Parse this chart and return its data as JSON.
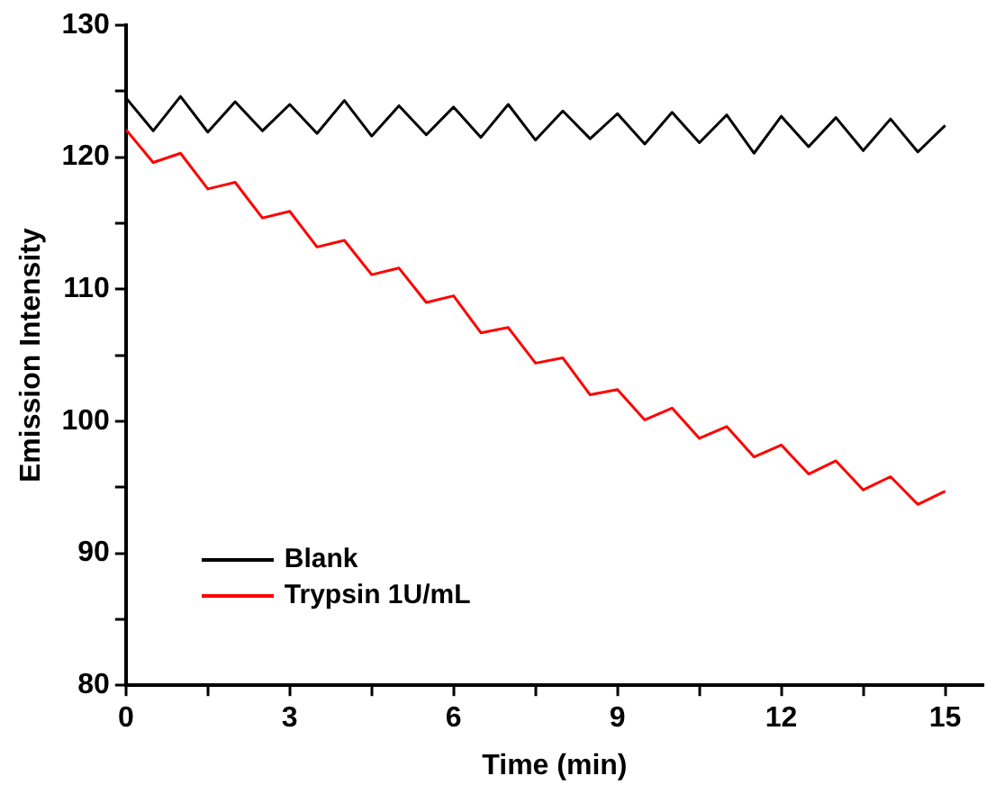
{
  "chart_data": {
    "type": "line",
    "xlabel": "Time (min)",
    "ylabel": "Emission Intensity",
    "x": [
      0,
      0.5,
      1,
      1.5,
      2,
      2.5,
      3,
      3.5,
      4,
      4.5,
      5,
      5.5,
      6,
      6.5,
      7,
      7.5,
      8,
      8.5,
      9,
      9.5,
      10,
      10.5,
      11,
      11.5,
      12,
      12.5,
      13,
      13.5,
      14,
      14.5,
      15
    ],
    "series": [
      {
        "name": "Blank",
        "color": "#000000",
        "values": [
          124.5,
          122.0,
          124.6,
          121.9,
          124.2,
          122.0,
          124.0,
          121.8,
          124.3,
          121.6,
          123.9,
          121.7,
          123.8,
          121.5,
          124.0,
          121.3,
          123.5,
          121.4,
          123.3,
          121.0,
          123.4,
          121.1,
          123.2,
          120.3,
          123.1,
          120.8,
          123.0,
          120.5,
          122.9,
          120.4,
          122.4
        ]
      },
      {
        "name": "Trypsin 1U/mL",
        "color": "#ff0000",
        "values": [
          122.1,
          119.6,
          120.3,
          117.6,
          118.1,
          115.4,
          115.9,
          113.2,
          113.7,
          111.1,
          111.6,
          109.0,
          109.5,
          106.7,
          107.1,
          104.4,
          104.8,
          102.0,
          102.4,
          100.1,
          101.0,
          98.7,
          99.6,
          97.3,
          98.2,
          96.0,
          97.0,
          94.8,
          95.8,
          93.7,
          94.7
        ]
      }
    ],
    "xlim": [
      0,
      15.7
    ],
    "xticks": [
      0,
      {
        "value": 1.5,
        "label": null
      },
      3,
      {
        "value": 4.5,
        "label": null
      },
      6,
      {
        "value": 7.5,
        "label": null
      },
      9,
      {
        "value": 10.5,
        "label": null
      },
      12,
      {
        "value": 13.5,
        "label": null
      },
      15
    ],
    "ylim": [
      80,
      130
    ],
    "yticks": [
      80,
      {
        "value": 85,
        "label": null
      },
      90,
      {
        "value": 95,
        "label": null
      },
      100,
      {
        "value": 105,
        "label": null
      },
      110,
      {
        "value": 115,
        "label": null
      },
      120,
      {
        "value": 125,
        "label": null
      },
      130
    ],
    "grid": false,
    "legend": "bottom left",
    "marker": "none",
    "line_style": "solid"
  }
}
